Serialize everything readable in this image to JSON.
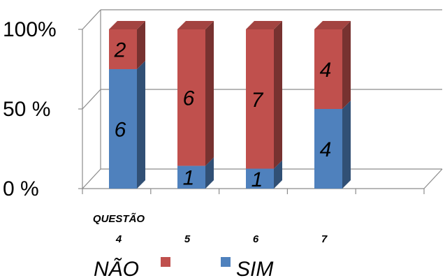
{
  "chart_data": {
    "type": "bar",
    "stacked": true,
    "percent": true,
    "three_d": true,
    "x_title": "QUESTÃO",
    "categories": [
      "4",
      "5",
      "6",
      "7"
    ],
    "series": [
      {
        "name": "SIM",
        "color": "#4f81bd",
        "values": [
          6,
          1,
          1,
          4
        ]
      },
      {
        "name": "NÃO",
        "color": "#c0504d",
        "values": [
          2,
          6,
          7,
          4
        ]
      }
    ],
    "y_ticks": [
      "0 %",
      "50 %",
      "100%"
    ],
    "ylim": [
      0,
      100
    ],
    "grid": true,
    "legend": {
      "position": "bottom",
      "order": [
        "NÃO",
        "SIM"
      ]
    }
  }
}
